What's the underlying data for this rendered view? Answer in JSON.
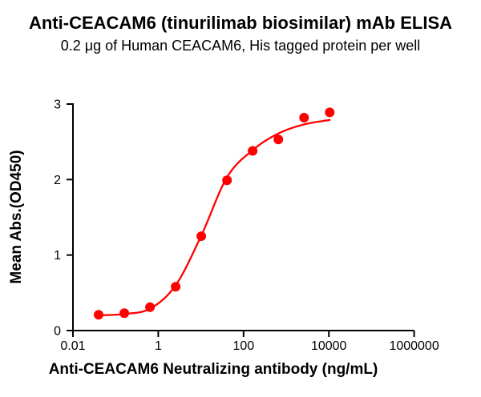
{
  "chart_data": {
    "type": "scatter",
    "title": "Anti-CEACAM6 (tinurilimab biosimilar) mAb ELISA",
    "subtitle": "0.2 μg of Human CEACAM6, His tagged protein per well",
    "xlabel": "Anti-CEACAM6 Neutralizing antibody (ng/mL)",
    "ylabel": "Mean Abs.(OD450)",
    "x_scale": "log10",
    "xlim": [
      0.01,
      1000000
    ],
    "ylim": [
      0,
      3
    ],
    "grid": false,
    "legend": "none",
    "xtick_values": [
      0.01,
      1,
      100,
      10000,
      1000000
    ],
    "xtick_labels": [
      "0.01",
      "1",
      "100",
      "10000",
      "1000000"
    ],
    "ytick_values": [
      0,
      1,
      2,
      3
    ],
    "ytick_labels": [
      "0",
      "1",
      "2",
      "3"
    ],
    "x": [
      0.04,
      0.16,
      0.64,
      2.56,
      10.24,
      40.96,
      163.84,
      655.36,
      2621.44,
      10485.76
    ],
    "y": [
      0.21,
      0.23,
      0.31,
      0.58,
      1.25,
      1.99,
      2.38,
      2.53,
      2.82,
      2.89
    ],
    "fit_curve_y": [
      0.2,
      0.22,
      0.29,
      0.6,
      1.26,
      2.03,
      2.39,
      2.61,
      2.73,
      2.79
    ],
    "marker_color": "#FF0000",
    "line_color": "#FF0000",
    "axis_color": "#000000",
    "text_color": "#000000"
  }
}
